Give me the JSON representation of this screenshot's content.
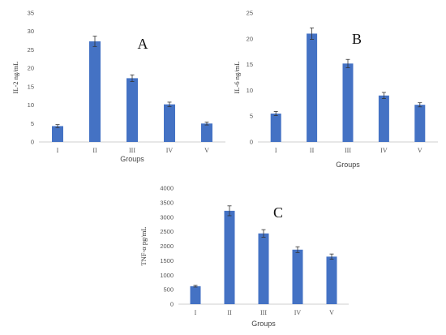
{
  "chart_data": [
    {
      "type": "bar",
      "panel_label": "A",
      "categories": [
        "I",
        "II",
        "III",
        "IV",
        "V"
      ],
      "values": [
        4.3,
        27.3,
        17.3,
        10.2,
        5.0
      ],
      "errors": [
        0.4,
        1.4,
        0.9,
        0.6,
        0.4
      ],
      "yticks": [
        "0",
        "5",
        "10",
        "15",
        "20",
        "25",
        "30",
        "35"
      ],
      "xlabel": "Groups",
      "ylabel": "IL-2 ng/mL",
      "ylim": [
        0,
        35
      ],
      "bar_color": "#4472c4"
    },
    {
      "type": "bar",
      "panel_label": "B",
      "categories": [
        "I",
        "II",
        "III",
        "IV",
        "V"
      ],
      "values": [
        5.5,
        21.0,
        15.2,
        9.0,
        7.2
      ],
      "errors": [
        0.4,
        1.1,
        0.8,
        0.6,
        0.4
      ],
      "yticks": [
        "0",
        "5",
        "10",
        "15",
        "20",
        "25"
      ],
      "xlabel": "Groups",
      "ylabel": "IL-6 ng/mL",
      "ylim": [
        0,
        25
      ],
      "bar_color": "#4472c4"
    },
    {
      "type": "bar",
      "panel_label": "C",
      "categories": [
        "I",
        "II",
        "III",
        "IV",
        "V"
      ],
      "values": [
        620,
        3220,
        2440,
        1880,
        1640
      ],
      "errors": [
        30,
        170,
        130,
        100,
        90
      ],
      "yticks": [
        "0",
        "500",
        "1000",
        "1500",
        "2000",
        "2500",
        "3000",
        "3500",
        "4000"
      ],
      "xlabel": "Groups",
      "ylabel": "TNF-α pg/mL",
      "ylim": [
        0,
        4000
      ],
      "bar_color": "#4472c4"
    }
  ]
}
